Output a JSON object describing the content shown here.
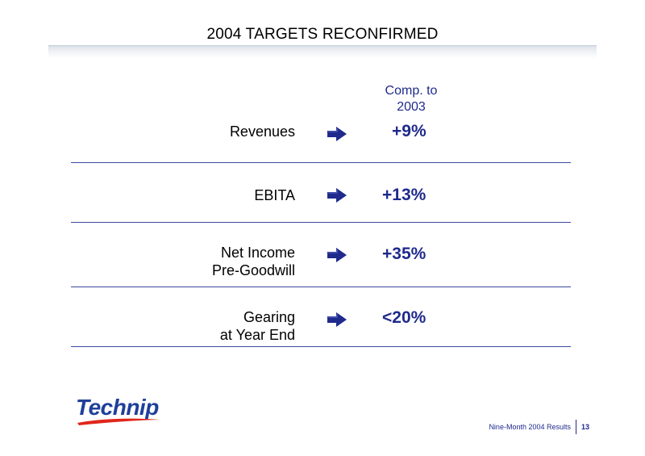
{
  "slide": {
    "title": "2004 TARGETS RECONFIRMED",
    "column_header": [
      "Comp. to",
      "2003"
    ]
  },
  "rows": [
    {
      "label": [
        "Revenues"
      ],
      "value": "+9%"
    },
    {
      "label": [
        "EBITA"
      ],
      "value": "+13%"
    },
    {
      "label": [
        "Net Income",
        "Pre-Goodwill"
      ],
      "value": "+35%"
    },
    {
      "label": [
        "Gearing",
        "at Year End"
      ],
      "value": "<20%"
    }
  ],
  "icons": {
    "row_arrow": "right-arrow-icon"
  },
  "logo": {
    "text": "Technip",
    "color": "#1f3f9a",
    "swoosh_color": "#e0261b"
  },
  "footer": {
    "text": "Nine-Month 2004 Results",
    "page": "13"
  },
  "colors": {
    "accent": "#1f2a8c",
    "divider": "#3b4a9e"
  }
}
